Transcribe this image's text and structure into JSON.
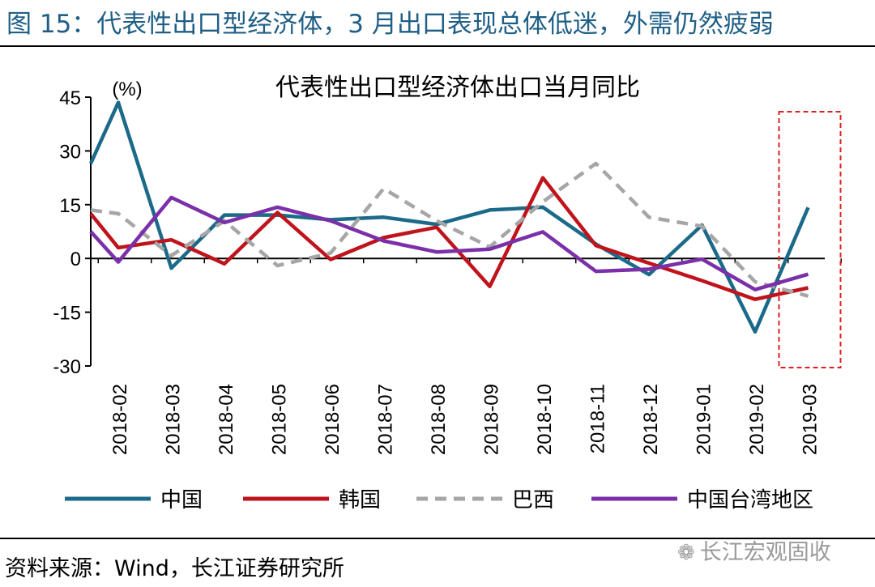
{
  "figure": {
    "title": "图 15：代表性出口型经济体，3 月出口表现总体低迷，外需仍然疲弱",
    "source": "资料来源：Wind，长江证券研究所",
    "watermark": "长江宏观固收",
    "watermark_icon": "wechat-icon"
  },
  "chart_data": {
    "type": "line",
    "title": "代表性出口型经济体出口当月同比",
    "unit_label": "(%)",
    "xlabel": "",
    "ylabel": "",
    "ylim": [
      -30,
      45
    ],
    "yticks": [
      45,
      30,
      15,
      0,
      -15,
      -30
    ],
    "grid": false,
    "legend_position": "bottom",
    "categories": [
      "2018-02",
      "2018-03",
      "2018-04",
      "2018-05",
      "2018-06",
      "2018-07",
      "2018-08",
      "2018-09",
      "2018-10",
      "2018-11",
      "2018-12",
      "2019-01",
      "2019-02",
      "2019-03"
    ],
    "x_start_value": 26.5,
    "x_start_values": {
      "中国": 26.5,
      "韩国": 12.5,
      "巴西": 13.5,
      "中国台湾地区": 7.5
    },
    "highlight_category": "2019-03",
    "highlight_color": "#e02020",
    "series": [
      {
        "name": "中国",
        "color": "#1b6a8a",
        "dashed": false,
        "values": [
          43.5,
          -2.7,
          12.1,
          12.1,
          10.8,
          11.5,
          9.5,
          13.5,
          14.3,
          4.0,
          -4.5,
          9.3,
          -20.5,
          14.2
        ]
      },
      {
        "name": "韩国",
        "color": "#c0141c",
        "dashed": false,
        "values": [
          3.0,
          5.2,
          -1.5,
          12.8,
          -0.3,
          5.8,
          8.7,
          -7.8,
          22.5,
          3.6,
          -1.3,
          -6.2,
          -11.4,
          -8.2
        ]
      },
      {
        "name": "巴西",
        "color": "#a6a6a6",
        "dashed": true,
        "values": [
          12.5,
          0.8,
          10.5,
          -2.0,
          1.5,
          19.5,
          10.5,
          3.2,
          15.8,
          26.5,
          11.5,
          9.0,
          -6.5,
          -10.5
        ]
      },
      {
        "name": "中国台湾地区",
        "color": "#7b2fa8",
        "dashed": false,
        "values": [
          -1.0,
          17.0,
          10.0,
          14.3,
          10.5,
          4.9,
          1.8,
          2.6,
          7.4,
          -3.6,
          -3.0,
          -0.2,
          -8.7,
          -4.4
        ]
      }
    ]
  }
}
